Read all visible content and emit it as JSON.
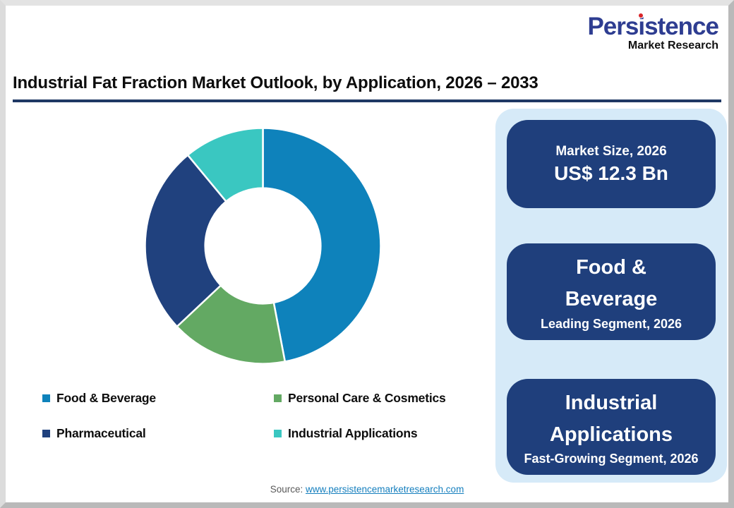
{
  "logo": {
    "p1": "Pers",
    "i": "i",
    "p2": "stence",
    "full_name": "Persistence",
    "subtitle": "Market Research",
    "name_color": "#2E3D91",
    "dot_color": "#D9252A"
  },
  "header": {
    "title": "Industrial Fat Fraction Market Outlook, by Application, 2026 – 2033",
    "underline_color": "#1F3864"
  },
  "chart_data": {
    "type": "pie",
    "variant": "donut",
    "title": "Industrial Fat Fraction Market Outlook, by Application, 2026 – 2033",
    "categories": [
      "Food & Beverage",
      "Personal Care & Cosmetics",
      "Pharmaceutical",
      "Industrial Applications"
    ],
    "values": [
      47,
      16,
      26,
      11
    ],
    "values_note": "percent share estimated from arc angles; no numeric labels shown on chart",
    "colors": [
      "#0E82BB",
      "#63A963",
      "#20417E",
      "#3AC7C1"
    ],
    "start_angle_deg": 0,
    "clockwise": true,
    "inner_radius_ratio": 0.49,
    "slice_gap_color": "#FFFFFF",
    "legend_position": "bottom-left, two columns"
  },
  "panel": {
    "bg_color": "#D6EAF8",
    "card_bg_color": "#1F3F7C",
    "card_text_color": "#FFFFFF",
    "cards": [
      {
        "label": "Market Size, 2026",
        "value": "US$ 12.3 Bn"
      },
      {
        "title": "Food &\nBeverage",
        "subtitle": "Leading Segment, 2026"
      },
      {
        "title": "Industrial\nApplications",
        "subtitle": "Fast-Growing Segment, 2026"
      }
    ]
  },
  "footer": {
    "source_label": "Source:",
    "link_text": "www.persistencemarketresearch.com",
    "link_color": "#157FBE"
  }
}
